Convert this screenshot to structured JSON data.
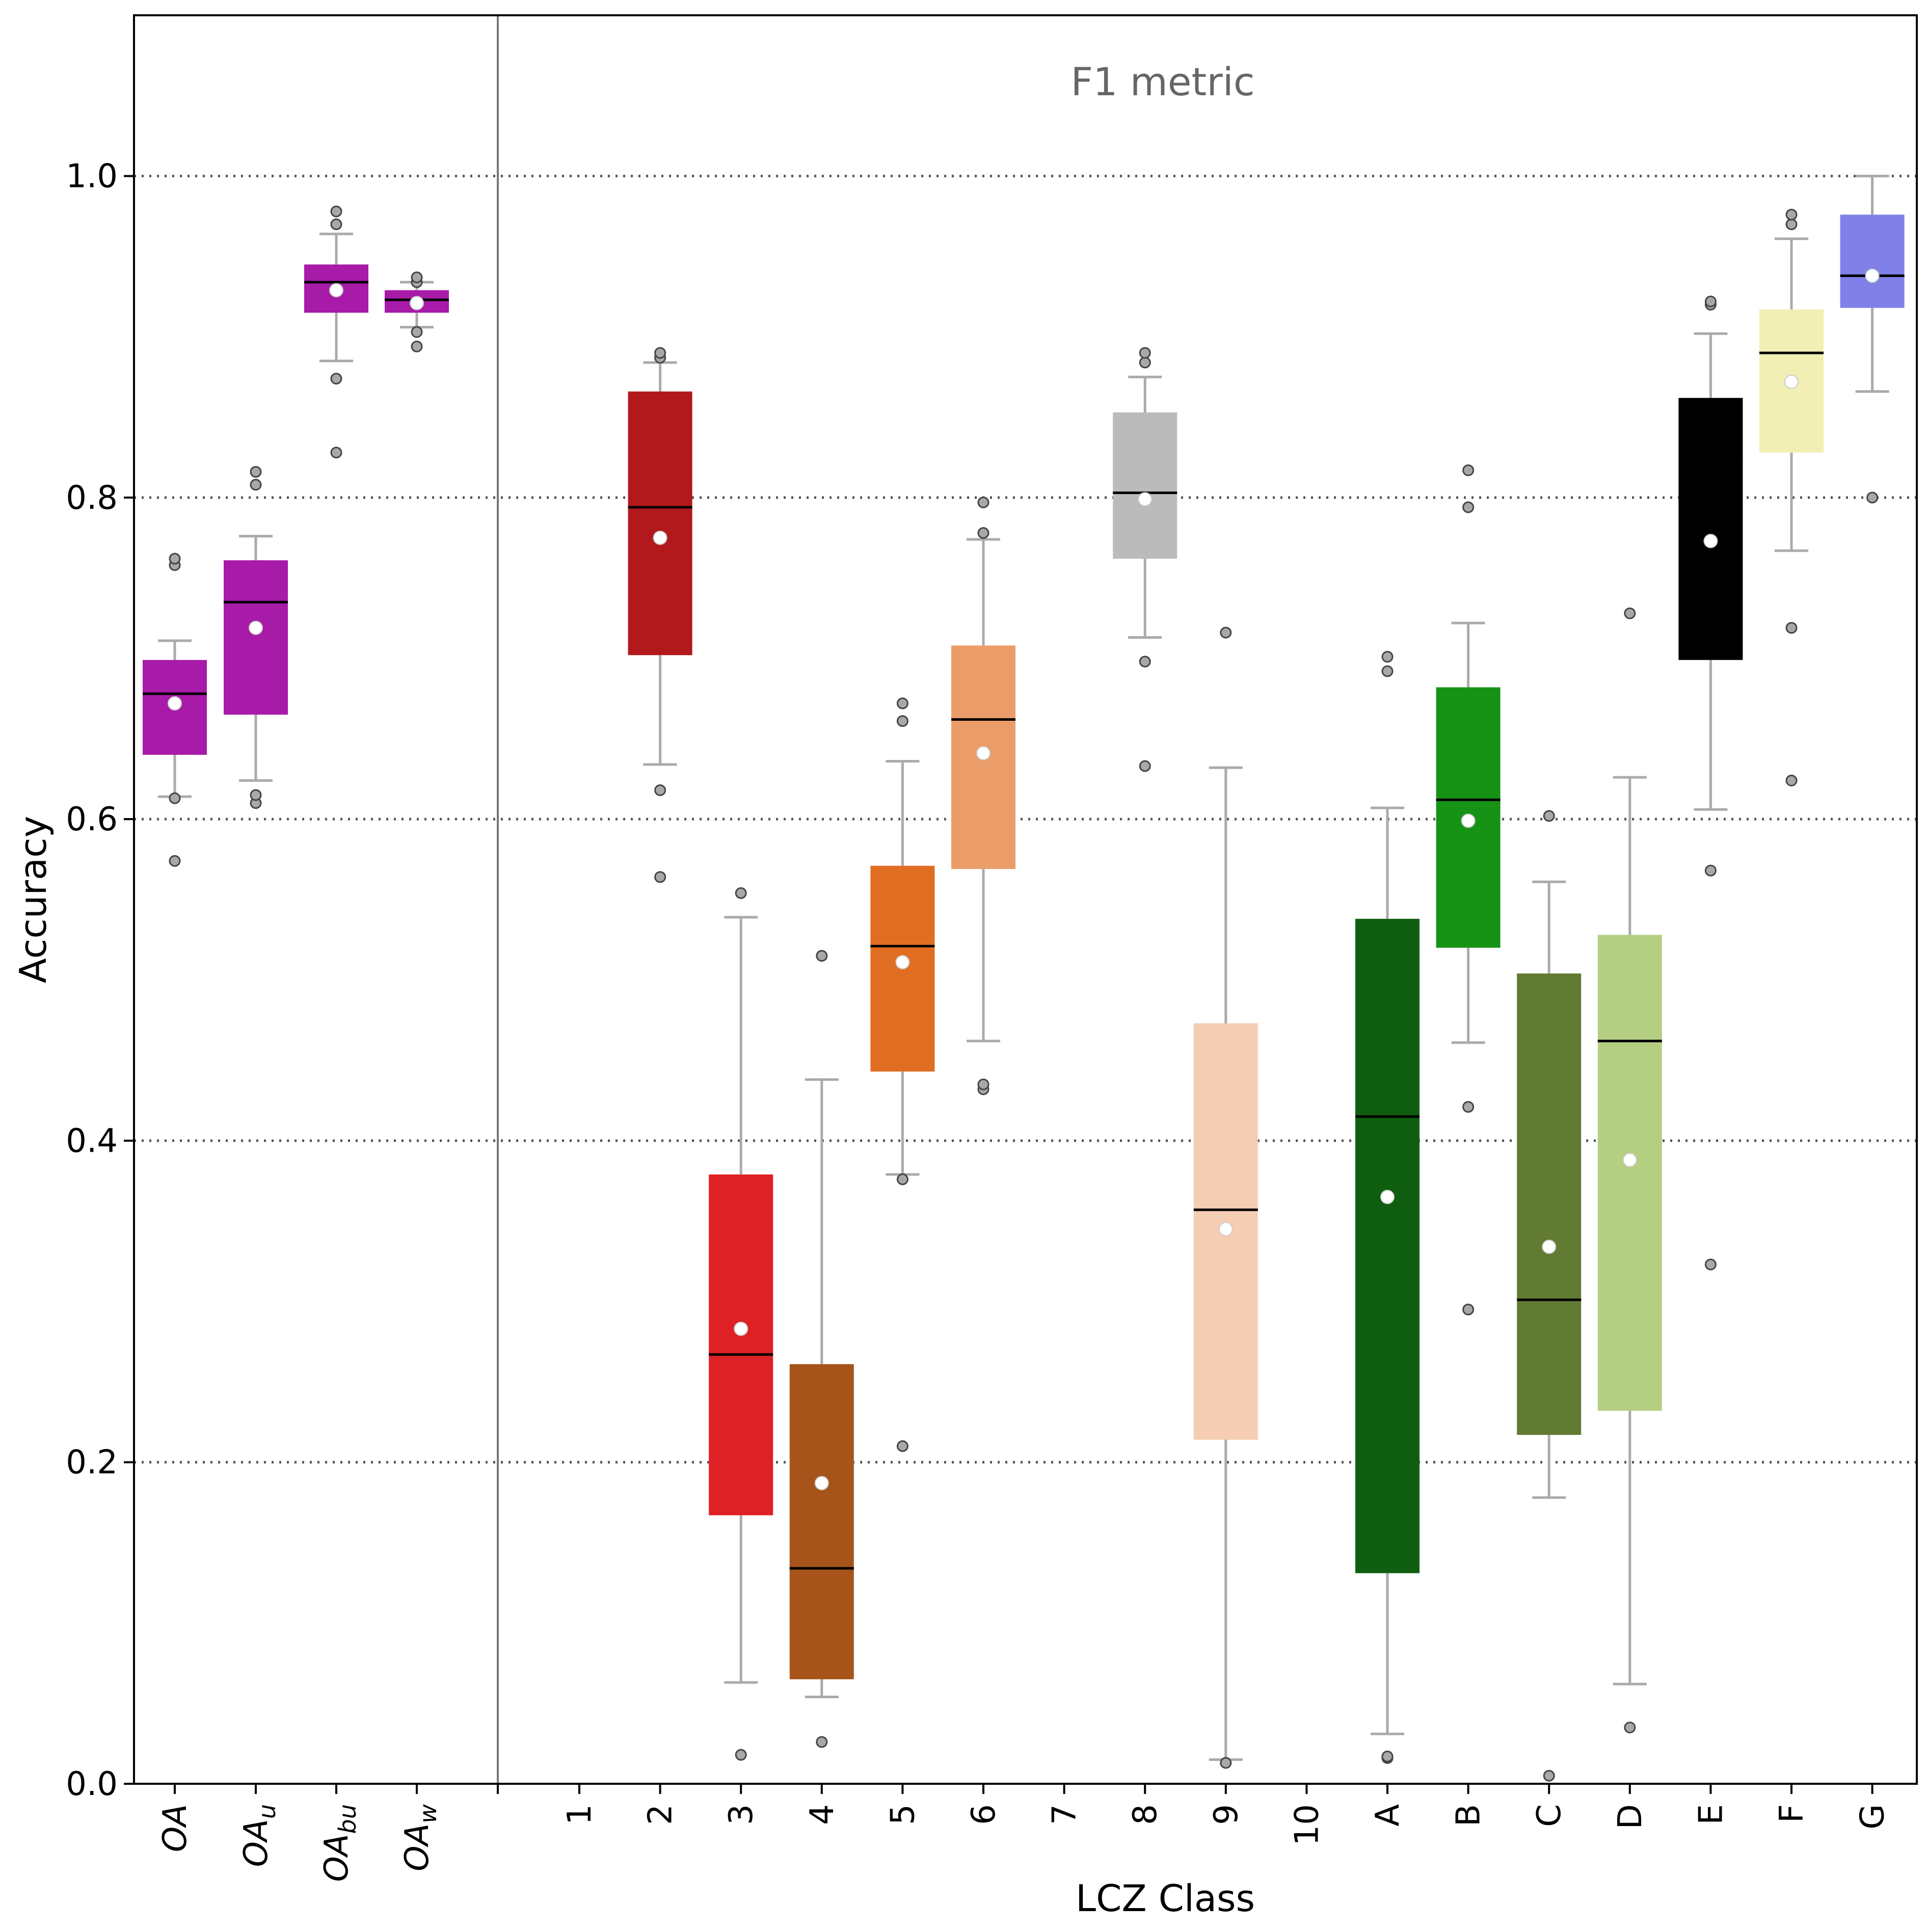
{
  "chart_data": {
    "type": "box",
    "annotation": "F1 metric",
    "xlabel": "LCZ Class",
    "ylabel": "Accuracy",
    "ylim": [
      0.0,
      1.1
    ],
    "yticks": [
      "0.0",
      "0.2",
      "0.4",
      "0.6",
      "0.8",
      "1.0"
    ],
    "grid": "horizontal dotted",
    "groups": [
      {
        "name": "overall",
        "categories": [
          {
            "base": "OA",
            "sub": "",
            "label": "OA",
            "color": "#a81aa8",
            "q1": 0.64,
            "median": 0.678,
            "q3": 0.699,
            "mean": 0.672,
            "whisker_low": 0.614,
            "whisker_high": 0.711,
            "outliers": [
              0.574,
              0.613,
              0.758,
              0.762
            ]
          },
          {
            "base": "OA",
            "sub": "u",
            "label": "OAu",
            "color": "#a81aa8",
            "q1": 0.665,
            "median": 0.735,
            "q3": 0.761,
            "mean": 0.719,
            "whisker_low": 0.624,
            "whisker_high": 0.776,
            "outliers": [
              0.61,
              0.615,
              0.808,
              0.816
            ]
          },
          {
            "base": "OA",
            "sub": "bu",
            "label": "OAbu",
            "color": "#a81aa8",
            "q1": 0.915,
            "median": 0.934,
            "q3": 0.945,
            "mean": 0.929,
            "whisker_low": 0.885,
            "whisker_high": 0.964,
            "outliers": [
              0.828,
              0.874,
              0.97,
              0.978
            ]
          },
          {
            "base": "OA",
            "sub": "w",
            "label": "OAw",
            "color": "#a81aa8",
            "q1": 0.915,
            "median": 0.923,
            "q3": 0.929,
            "mean": 0.921,
            "whisker_low": 0.906,
            "whisker_high": 0.934,
            "outliers": [
              0.894,
              0.903,
              0.934,
              0.937
            ]
          }
        ]
      },
      {
        "name": "lcz",
        "categories": [
          {
            "label": "1",
            "color": "",
            "empty": true
          },
          {
            "label": "2",
            "color": "#b2191c",
            "q1": 0.702,
            "median": 0.794,
            "q3": 0.866,
            "mean": 0.775,
            "whisker_low": 0.634,
            "whisker_high": 0.884,
            "outliers": [
              0.564,
              0.618,
              0.887,
              0.89
            ]
          },
          {
            "label": "3",
            "color": "#de2124",
            "q1": 0.167,
            "median": 0.267,
            "q3": 0.379,
            "mean": 0.283,
            "whisker_low": 0.063,
            "whisker_high": 0.539,
            "outliers": [
              0.018,
              0.554
            ]
          },
          {
            "label": "4",
            "color": "#a6541a",
            "q1": 0.065,
            "median": 0.134,
            "q3": 0.261,
            "mean": 0.187,
            "whisker_low": 0.054,
            "whisker_high": 0.438,
            "outliers": [
              0.026,
              0.515
            ]
          },
          {
            "label": "5",
            "color": "#e06e22",
            "q1": 0.443,
            "median": 0.521,
            "q3": 0.571,
            "mean": 0.511,
            "whisker_low": 0.379,
            "whisker_high": 0.636,
            "outliers": [
              0.21,
              0.376,
              0.661,
              0.672
            ]
          },
          {
            "label": "6",
            "color": "#eb9d69",
            "q1": 0.569,
            "median": 0.662,
            "q3": 0.708,
            "mean": 0.641,
            "whisker_low": 0.462,
            "whisker_high": 0.774,
            "outliers": [
              0.432,
              0.435,
              0.778,
              0.797
            ]
          },
          {
            "label": "7",
            "color": "",
            "empty": true
          },
          {
            "label": "8",
            "color": "#bbbbbb",
            "q1": 0.762,
            "median": 0.803,
            "q3": 0.853,
            "mean": 0.799,
            "whisker_low": 0.713,
            "whisker_high": 0.875,
            "outliers": [
              0.633,
              0.698,
              0.884,
              0.89
            ]
          },
          {
            "label": "9",
            "color": "#f5cdb3",
            "q1": 0.214,
            "median": 0.357,
            "q3": 0.473,
            "mean": 0.345,
            "whisker_low": 0.015,
            "whisker_high": 0.632,
            "outliers": [
              0.013,
              0.716
            ]
          },
          {
            "label": "10",
            "color": "",
            "empty": true
          },
          {
            "label": "A",
            "color": "#0f5e0f",
            "q1": 0.131,
            "median": 0.415,
            "q3": 0.538,
            "mean": 0.365,
            "whisker_low": 0.031,
            "whisker_high": 0.607,
            "outliers": [
              0.016,
              0.017,
              0.692,
              0.701
            ]
          },
          {
            "label": "B",
            "color": "#169316",
            "q1": 0.52,
            "median": 0.612,
            "q3": 0.682,
            "mean": 0.599,
            "whisker_low": 0.461,
            "whisker_high": 0.722,
            "outliers": [
              0.295,
              0.421,
              0.794,
              0.817
            ]
          },
          {
            "label": "C",
            "color": "#617b33",
            "q1": 0.217,
            "median": 0.301,
            "q3": 0.504,
            "mean": 0.334,
            "whisker_low": 0.178,
            "whisker_high": 0.561,
            "outliers": [
              0.005,
              0.602
            ]
          },
          {
            "label": "D",
            "color": "#b4cf82",
            "q1": 0.232,
            "median": 0.462,
            "q3": 0.528,
            "mean": 0.388,
            "whisker_low": 0.062,
            "whisker_high": 0.626,
            "outliers": [
              0.035,
              0.728
            ]
          },
          {
            "label": "E",
            "color": "#000000",
            "q1": 0.699,
            "median": 0.823,
            "q3": 0.862,
            "mean": 0.773,
            "whisker_low": 0.606,
            "whisker_high": 0.902,
            "outliers": [
              0.323,
              0.568,
              0.92,
              0.922
            ]
          },
          {
            "label": "F",
            "color": "#f2efb5",
            "q1": 0.828,
            "median": 0.89,
            "q3": 0.917,
            "mean": 0.872,
            "whisker_low": 0.767,
            "whisker_high": 0.961,
            "outliers": [
              0.624,
              0.719,
              0.97,
              0.976
            ]
          },
          {
            "label": "G",
            "color": "#8080e8",
            "q1": 0.918,
            "median": 0.938,
            "q3": 0.976,
            "mean": 0.938,
            "whisker_low": 0.866,
            "whisker_high": 1.0,
            "outliers": [
              0.8
            ]
          }
        ]
      }
    ]
  }
}
